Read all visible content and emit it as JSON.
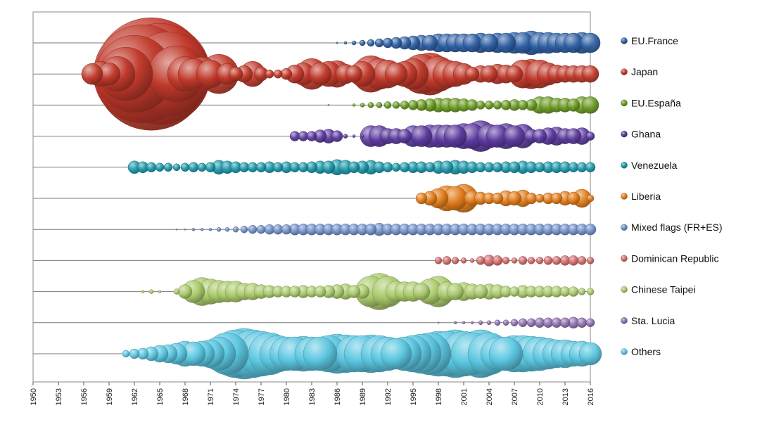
{
  "chart_data": {
    "type": "scatter",
    "subtype": "bubble-timeline",
    "x_range": [
      1950,
      2016
    ],
    "x_ticks": [
      "1950",
      "1953",
      "1956",
      "1959",
      "1962",
      "1965",
      "1968",
      "1971",
      "1974",
      "1977",
      "1980",
      "1983",
      "1986",
      "1989",
      "1992",
      "1995",
      "1998",
      "2001",
      "2004",
      "2007",
      "2010",
      "2013",
      "2016"
    ],
    "legend_placement": "right",
    "grid": false,
    "series": [
      {
        "name": "EU.France",
        "color": "#2E5FA3",
        "x": [
          1986,
          1987,
          1988,
          1989,
          1990,
          1991,
          1992,
          1993,
          1994,
          1995,
          1996,
          1997,
          1998,
          1999,
          2000,
          2001,
          2002,
          2003,
          2004,
          2005,
          2006,
          2007,
          2008,
          2009,
          2010,
          2011,
          2012,
          2013,
          2014,
          2015,
          2016
        ],
        "values": [
          1,
          2,
          3,
          4,
          5,
          6,
          7,
          8,
          9,
          10,
          11,
          11,
          13,
          13,
          13,
          13,
          13,
          14,
          13,
          14,
          14,
          15,
          15,
          17,
          15,
          15,
          14,
          14,
          14,
          15,
          14
        ]
      },
      {
        "name": "Japan",
        "color": "#C0392B",
        "x": [
          1957,
          1958,
          1959,
          1960,
          1961,
          1962,
          1963,
          1964,
          1965,
          1966,
          1967,
          1968,
          1969,
          1970,
          1971,
          1972,
          1973,
          1974,
          1975,
          1976,
          1977,
          1978,
          1979,
          1980,
          1981,
          1982,
          1983,
          1984,
          1985,
          1986,
          1987,
          1988,
          1989,
          1990,
          1991,
          1992,
          1993,
          1994,
          1995,
          1996,
          1997,
          1998,
          1999,
          2000,
          2001,
          2002,
          2003,
          2004,
          2005,
          2006,
          2007,
          2008,
          2009,
          2010,
          2011,
          2012,
          2013,
          2014,
          2015,
          2016
        ],
        "values": [
          15,
          18,
          16,
          25,
          38,
          55,
          70,
          80,
          72,
          60,
          40,
          25,
          22,
          24,
          20,
          28,
          15,
          10,
          12,
          18,
          10,
          6,
          6,
          8,
          13,
          16,
          22,
          16,
          18,
          19,
          14,
          12,
          18,
          26,
          22,
          20,
          16,
          18,
          22,
          28,
          30,
          25,
          20,
          18,
          15,
          10,
          12,
          12,
          14,
          13,
          12,
          20,
          21,
          20,
          16,
          13,
          12,
          12,
          12,
          12
        ]
      },
      {
        "name": "EU.España",
        "color": "#6A9A22",
        "x": [
          1985,
          1988,
          1989,
          1990,
          1991,
          1992,
          1993,
          1994,
          1995,
          1996,
          1997,
          1998,
          1999,
          2000,
          2001,
          2002,
          2003,
          2004,
          2005,
          2006,
          2007,
          2008,
          2009,
          2010,
          2011,
          2012,
          2013,
          2014,
          2015,
          2016
        ],
        "values": [
          1,
          2,
          3,
          4,
          4,
          5,
          5,
          6,
          7,
          8,
          9,
          10,
          10,
          10,
          9,
          8,
          6,
          6,
          6,
          7,
          8,
          7,
          8,
          12,
          12,
          10,
          10,
          9,
          12,
          12
        ]
      },
      {
        "name": "Ghana",
        "color": "#5B3A9E",
        "x": [
          1981,
          1982,
          1983,
          1984,
          1985,
          1986,
          1987,
          1988,
          1989,
          1990,
          1991,
          1992,
          1993,
          1994,
          1995,
          1996,
          1997,
          1998,
          1999,
          2000,
          2001,
          2002,
          2003,
          2004,
          2005,
          2006,
          2007,
          2008,
          2009,
          2010,
          2011,
          2012,
          2013,
          2014,
          2015,
          2016
        ],
        "values": [
          7,
          7,
          7,
          9,
          10,
          8,
          3,
          2,
          2,
          15,
          15,
          11,
          11,
          10,
          15,
          15,
          16,
          16,
          16,
          16,
          18,
          18,
          22,
          17,
          16,
          18,
          15,
          17,
          10,
          10,
          12,
          13,
          11,
          11,
          12,
          6
        ]
      },
      {
        "name": "Venezuela",
        "color": "#1B96A8",
        "x": [
          1962,
          1963,
          1964,
          1965,
          1966,
          1967,
          1968,
          1969,
          1970,
          1971,
          1972,
          1973,
          1974,
          1975,
          1976,
          1977,
          1978,
          1979,
          1980,
          1981,
          1982,
          1983,
          1984,
          1985,
          1986,
          1987,
          1988,
          1989,
          1990,
          1991,
          1992,
          1993,
          1994,
          1995,
          1996,
          1997,
          1998,
          1999,
          2000,
          2001,
          2002,
          2003,
          2004,
          2005,
          2006,
          2007,
          2008,
          2009,
          2010,
          2011,
          2012,
          2013,
          2014,
          2015,
          2016
        ],
        "values": [
          9,
          8,
          7,
          6,
          6,
          5,
          6,
          7,
          6,
          7,
          10,
          9,
          8,
          7,
          7,
          7,
          8,
          7,
          8,
          7,
          7,
          8,
          9,
          9,
          11,
          10,
          8,
          9,
          10,
          8,
          7,
          6,
          7,
          8,
          8,
          7,
          9,
          9,
          10,
          9,
          8,
          7,
          7,
          7,
          8,
          8,
          9,
          8,
          7,
          8,
          8,
          8,
          7,
          7,
          7
        ]
      },
      {
        "name": "Liberia",
        "color": "#E07B1A",
        "x": [
          1996,
          1997,
          1998,
          1999,
          2000,
          2001,
          2002,
          2003,
          2004,
          2005,
          2006,
          2007,
          2008,
          2009,
          2010,
          2011,
          2012,
          2013,
          2014,
          2015,
          2016
        ],
        "values": [
          8,
          10,
          14,
          18,
          17,
          20,
          11,
          9,
          8,
          8,
          11,
          10,
          12,
          8,
          6,
          8,
          8,
          10,
          9,
          13,
          5
        ]
      },
      {
        "name": "Mixed flags (FR+ES)",
        "color": "#6F8FC9",
        "x": [
          1967,
          1968,
          1969,
          1970,
          1971,
          1972,
          1973,
          1974,
          1975,
          1976,
          1977,
          1978,
          1979,
          1980,
          1981,
          1982,
          1983,
          1984,
          1985,
          1986,
          1987,
          1988,
          1989,
          1990,
          1991,
          1992,
          1993,
          1994,
          1995,
          1996,
          1997,
          1998,
          1999,
          2000,
          2001,
          2002,
          2003,
          2004,
          2005,
          2006,
          2007,
          2008,
          2009,
          2010,
          2011,
          2012,
          2013,
          2014,
          2015,
          2016
        ],
        "values": [
          1,
          1,
          2,
          2,
          2,
          3,
          3,
          4,
          5,
          6,
          6,
          7,
          7,
          7,
          8,
          8,
          8,
          8,
          8,
          8,
          8,
          8,
          8,
          8,
          9,
          8,
          8,
          8,
          8,
          8,
          8,
          8,
          8,
          8,
          8,
          8,
          8,
          8,
          8,
          8,
          8,
          8,
          8,
          8,
          8,
          8,
          8,
          8,
          8,
          8
        ]
      },
      {
        "name": "Dominican Republic",
        "color": "#D06A6A",
        "x": [
          1998,
          1999,
          2000,
          2001,
          2002,
          2003,
          2004,
          2005,
          2006,
          2007,
          2008,
          2009,
          2010,
          2011,
          2012,
          2013,
          2014,
          2015,
          2016
        ],
        "values": [
          5,
          6,
          5,
          4,
          3,
          6,
          8,
          7,
          5,
          4,
          6,
          5,
          5,
          6,
          6,
          7,
          7,
          6,
          5
        ]
      },
      {
        "name": "Chinese Taipei",
        "color": "#A9C96A",
        "x": [
          1963,
          1964,
          1965,
          1967,
          1968,
          1969,
          1970,
          1971,
          1972,
          1973,
          1974,
          1975,
          1976,
          1977,
          1978,
          1979,
          1980,
          1981,
          1982,
          1983,
          1984,
          1985,
          1986,
          1987,
          1988,
          1989,
          1990,
          1991,
          1992,
          1993,
          1994,
          1995,
          1996,
          1997,
          1998,
          1999,
          2000,
          2001,
          2002,
          2003,
          2004,
          2005,
          2006,
          2007,
          2008,
          2009,
          2010,
          2011,
          2012,
          2013,
          2014,
          2015,
          2016
        ],
        "values": [
          2,
          3,
          2,
          4,
          10,
          16,
          20,
          18,
          16,
          15,
          15,
          12,
          12,
          10,
          9,
          8,
          8,
          8,
          9,
          8,
          8,
          9,
          10,
          11,
          9,
          10,
          22,
          26,
          22,
          15,
          14,
          14,
          12,
          18,
          22,
          14,
          12,
          13,
          11,
          10,
          11,
          10,
          8,
          7,
          9,
          8,
          8,
          8,
          8,
          7,
          7,
          5,
          5
        ]
      },
      {
        "name": "Sta. Lucia",
        "color": "#8E6FAF",
        "x": [
          1998,
          2000,
          2001,
          2002,
          2003,
          2004,
          2005,
          2006,
          2007,
          2008,
          2009,
          2010,
          2011,
          2012,
          2013,
          2014,
          2015,
          2016
        ],
        "values": [
          1,
          2,
          2,
          2,
          3,
          3,
          4,
          4,
          5,
          6,
          6,
          7,
          7,
          7,
          7,
          8,
          7,
          6
        ]
      },
      {
        "name": "Others",
        "color": "#5BC6E0",
        "x": [
          1961,
          1962,
          1963,
          1964,
          1965,
          1966,
          1967,
          1968,
          1969,
          1970,
          1971,
          1972,
          1973,
          1974,
          1975,
          1976,
          1977,
          1978,
          1979,
          1980,
          1981,
          1982,
          1983,
          1984,
          1985,
          1986,
          1987,
          1988,
          1989,
          1990,
          1991,
          1992,
          1993,
          1994,
          1995,
          1996,
          1997,
          1998,
          1999,
          2000,
          2001,
          2002,
          2003,
          2004,
          2005,
          2006,
          2007,
          2008,
          2009,
          2010,
          2011,
          2012,
          2013,
          2014,
          2015,
          2016
        ],
        "values": [
          5,
          7,
          8,
          10,
          12,
          13,
          15,
          18,
          17,
          18,
          20,
          24,
          30,
          34,
          36,
          34,
          32,
          30,
          26,
          24,
          24,
          25,
          24,
          24,
          26,
          28,
          27,
          26,
          26,
          27,
          26,
          24,
          22,
          24,
          26,
          28,
          30,
          32,
          32,
          34,
          32,
          30,
          34,
          30,
          24,
          24,
          26,
          26,
          25,
          24,
          22,
          20,
          20,
          18,
          18,
          16
        ]
      }
    ]
  }
}
